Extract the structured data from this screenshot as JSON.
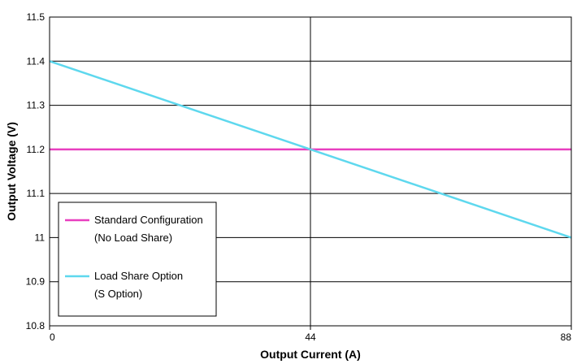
{
  "chart_data": {
    "type": "line",
    "title": "",
    "xlabel": "Output Current (A)",
    "ylabel": "Output Voltage (V)",
    "xlim": [
      0,
      88
    ],
    "ylim": [
      10.8,
      11.5
    ],
    "x_ticks": [
      0,
      44,
      88
    ],
    "x_tick_labels": [
      "0",
      "44",
      "88"
    ],
    "y_ticks": [
      10.8,
      10.9,
      11.0,
      11.1,
      11.2,
      11.3,
      11.4,
      11.5
    ],
    "y_tick_labels": [
      "10.8",
      "10.9",
      "11",
      "11.1",
      "11.2",
      "11.3",
      "11.4",
      "11.5"
    ],
    "grid": true,
    "legend_position": "bottom-left",
    "series": [
      {
        "legend_lines": [
          "Standard Configuration",
          "(No Load Share)"
        ],
        "color": "#e83fbf",
        "x": [
          0,
          88
        ],
        "y": [
          11.2,
          11.2
        ]
      },
      {
        "legend_lines": [
          "Load Share Option",
          "(S Option)"
        ],
        "color": "#5ed8ee",
        "x": [
          0,
          88
        ],
        "y": [
          11.4,
          11.0
        ]
      }
    ]
  }
}
